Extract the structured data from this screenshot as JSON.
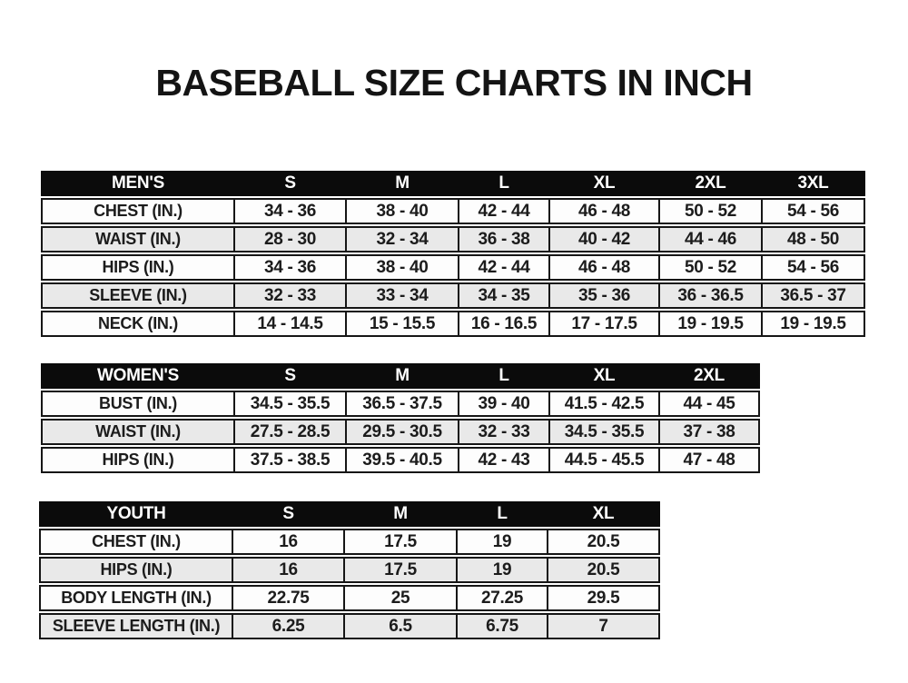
{
  "title": "BASEBALL SIZE CHARTS IN INCH",
  "colors": {
    "header_bg": "#0b0b0b",
    "header_text": "#ffffff",
    "row_bg": "#fdfdfd",
    "row_alt_bg": "#e9e9e9",
    "border": "#161616",
    "text": "#1c1c1c"
  },
  "tables": [
    {
      "name": "mens",
      "header": [
        "MEN'S",
        "S",
        "M",
        "L",
        "XL",
        "2XL",
        "3XL"
      ],
      "rows": [
        {
          "label": "CHEST (IN.)",
          "values": [
            "34 - 36",
            "38 - 40",
            "42 - 44",
            "46 - 48",
            "50 - 52",
            "54 - 56"
          ]
        },
        {
          "label": "WAIST (IN.)",
          "values": [
            "28 - 30",
            "32 - 34",
            "36 - 38",
            "40 - 42",
            "44 - 46",
            "48 - 50"
          ]
        },
        {
          "label": "HIPS (IN.)",
          "values": [
            "34 - 36",
            "38 - 40",
            "42 - 44",
            "46 - 48",
            "50 - 52",
            "54 - 56"
          ]
        },
        {
          "label": "SLEEVE (IN.)",
          "values": [
            "32 - 33",
            "33 - 34",
            "34 - 35",
            "35 - 36",
            "36 - 36.5",
            "36.5 - 37"
          ]
        },
        {
          "label": "NECK (IN.)",
          "values": [
            "14 - 14.5",
            "15 - 15.5",
            "16 - 16.5",
            "17 - 17.5",
            "19 - 19.5",
            "19 - 19.5"
          ]
        }
      ]
    },
    {
      "name": "womens",
      "header": [
        "WOMEN'S",
        "S",
        "M",
        "L",
        "XL",
        "2XL"
      ],
      "rows": [
        {
          "label": "BUST (IN.)",
          "values": [
            "34.5 - 35.5",
            "36.5 - 37.5",
            "39 - 40",
            "41.5 - 42.5",
            "44 - 45"
          ]
        },
        {
          "label": "WAIST (IN.)",
          "values": [
            "27.5 - 28.5",
            "29.5 - 30.5",
            "32 - 33",
            "34.5 - 35.5",
            "37 - 38"
          ]
        },
        {
          "label": "HIPS (IN.)",
          "values": [
            "37.5 - 38.5",
            "39.5 - 40.5",
            "42 - 43",
            "44.5 - 45.5",
            "47 - 48"
          ]
        }
      ]
    },
    {
      "name": "youth",
      "header": [
        "YOUTH",
        "S",
        "M",
        "L",
        "XL"
      ],
      "rows": [
        {
          "label": "CHEST (IN.)",
          "values": [
            "16",
            "17.5",
            "19",
            "20.5"
          ]
        },
        {
          "label": "HIPS (IN.)",
          "values": [
            "16",
            "17.5",
            "19",
            "20.5"
          ]
        },
        {
          "label": "BODY LENGTH (IN.)",
          "values": [
            "22.75",
            "25",
            "27.25",
            "29.5"
          ]
        },
        {
          "label": "SLEEVE LENGTH (IN.)",
          "values": [
            "6.25",
            "6.5",
            "6.75",
            "7"
          ]
        }
      ]
    }
  ]
}
